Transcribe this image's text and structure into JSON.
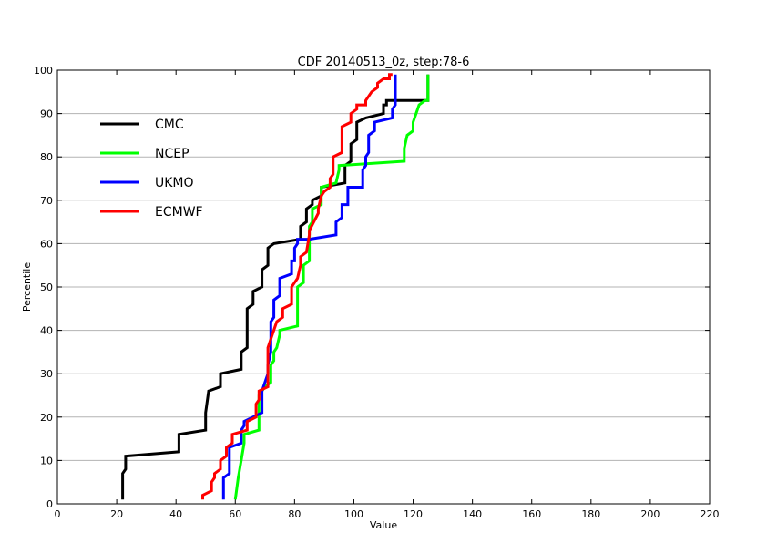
{
  "chart_data": {
    "type": "line",
    "title": "CDF 20140513_0z, step:78-6",
    "xlabel": "Value",
    "ylabel": "Percentile",
    "xlim": [
      0,
      220
    ],
    "ylim": [
      0,
      100
    ],
    "xticks": [
      0,
      20,
      40,
      60,
      80,
      100,
      120,
      140,
      160,
      180,
      200,
      220
    ],
    "yticks": [
      0,
      10,
      20,
      30,
      40,
      50,
      60,
      70,
      80,
      90,
      100
    ],
    "grid": "horizontal",
    "legend_position": "upper-left",
    "series": [
      {
        "name": "CMC",
        "color": "#000000",
        "x": [
          22,
          22,
          23,
          23,
          41,
          41,
          50,
          50,
          51,
          55,
          55,
          62,
          62,
          64,
          64,
          66,
          66,
          69,
          69,
          71,
          71,
          73,
          73,
          82,
          82,
          84,
          84,
          86,
          86,
          89,
          89,
          97,
          97,
          99,
          99,
          101,
          101,
          104,
          104,
          110,
          110,
          111,
          111,
          125,
          125
        ],
        "y": [
          1,
          7,
          8,
          11,
          12,
          16,
          17,
          21,
          26,
          27,
          30,
          31,
          35,
          36,
          45,
          46,
          49,
          50,
          54,
          55,
          59,
          60,
          60,
          61,
          64,
          65,
          68,
          69,
          70,
          71,
          73,
          74,
          78,
          79,
          83,
          84,
          88,
          89,
          89,
          90,
          92,
          92,
          93,
          93,
          99
        ]
      },
      {
        "name": "NCEP",
        "color": "#00ff00",
        "x": [
          60,
          61,
          62,
          63,
          63,
          68,
          68,
          69,
          70,
          72,
          72,
          73,
          73,
          74,
          75,
          75,
          81,
          81,
          83,
          83,
          85,
          85,
          85,
          86,
          86,
          89,
          89,
          94,
          95,
          95,
          117,
          117,
          118,
          120,
          120,
          121,
          122,
          124,
          125,
          125
        ],
        "y": [
          1,
          6,
          10,
          14,
          16,
          17,
          25,
          26,
          27,
          28,
          32,
          33,
          35,
          36,
          39,
          40,
          41,
          50,
          51,
          55,
          56,
          62,
          64,
          65,
          68,
          69,
          73,
          74,
          77,
          78,
          79,
          82,
          85,
          86,
          88,
          90,
          92,
          93,
          93,
          99
        ]
      },
      {
        "name": "UKMO",
        "color": "#0000ff",
        "x": [
          56,
          56,
          58,
          58,
          62,
          62,
          63,
          63,
          69,
          69,
          70,
          71,
          71,
          72,
          72,
          72,
          73,
          73,
          75,
          75,
          79,
          79,
          80,
          80,
          81,
          81,
          85,
          94,
          94,
          96,
          96,
          98,
          98,
          103,
          103,
          104,
          104,
          105,
          105,
          107,
          107,
          113,
          113,
          114,
          114
        ],
        "y": [
          1,
          6,
          7,
          13,
          14,
          17,
          18,
          19,
          21,
          26,
          28,
          30,
          32,
          35,
          37,
          42,
          43,
          47,
          48,
          52,
          53,
          56,
          56,
          59,
          60,
          61,
          61,
          62,
          65,
          66,
          69,
          69,
          73,
          73,
          77,
          78,
          80,
          81,
          85,
          86,
          88,
          89,
          91,
          92,
          99
        ]
      },
      {
        "name": "ECMWF",
        "color": "#ff0000",
        "x": [
          49,
          49,
          52,
          52,
          53,
          53,
          55,
          55,
          57,
          57,
          59,
          59,
          64,
          64,
          67,
          67,
          68,
          68,
          71,
          71,
          72,
          74,
          76,
          76,
          79,
          79,
          80,
          81,
          82,
          82,
          84,
          85,
          85,
          88,
          88,
          89,
          90,
          92,
          92,
          93,
          93,
          96,
          96,
          99,
          99,
          101,
          101,
          104,
          104,
          106,
          108,
          108,
          110,
          111,
          112,
          112,
          113
        ],
        "y": [
          1,
          2,
          3,
          5,
          6,
          7,
          8,
          10,
          11,
          13,
          14,
          16,
          17,
          19,
          20,
          23,
          24,
          26,
          27,
          36,
          38,
          42,
          43,
          45,
          46,
          50,
          51,
          52,
          55,
          57,
          58,
          62,
          63,
          67,
          68,
          71,
          72,
          73,
          75,
          76,
          80,
          81,
          87,
          88,
          90,
          91,
          92,
          92,
          93,
          95,
          96,
          97,
          98,
          98,
          98,
          99,
          99
        ]
      }
    ]
  }
}
